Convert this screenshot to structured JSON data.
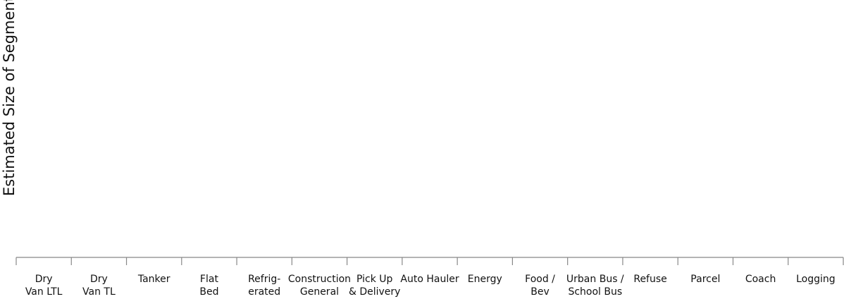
{
  "chart_data": {
    "type": "bar",
    "ylabel": "Estimated Size of Segment",
    "categories": [
      [
        "Dry",
        "Van LTL"
      ],
      [
        "Dry",
        "Van TL"
      ],
      [
        "Tanker"
      ],
      [
        "Flat",
        "Bed"
      ],
      [
        "Refrig-",
        "erated"
      ],
      [
        "Construction",
        "General"
      ],
      [
        "Pick Up",
        "& Delivery"
      ],
      [
        "Auto Hauler"
      ],
      [
        "Energy"
      ],
      [
        "Food /",
        "Bev"
      ],
      [
        "Urban Bus /",
        "School Bus"
      ],
      [
        "Refuse"
      ],
      [
        "Parcel"
      ],
      [
        "Coach"
      ],
      [
        "Logging"
      ]
    ]
  }
}
